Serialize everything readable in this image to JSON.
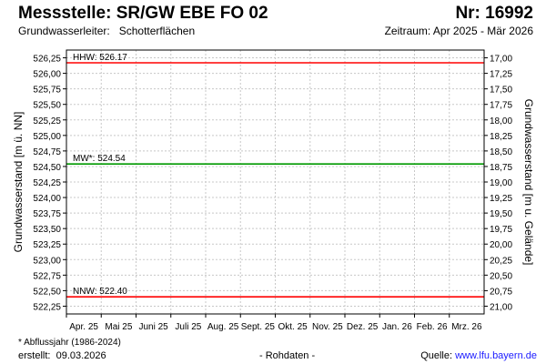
{
  "header": {
    "title": "Messstelle: SR/GW EBE FO 02",
    "number": "Nr: 16992",
    "aquifer_label": "Grundwasserleiter:",
    "aquifer_value": "Schotterflächen",
    "period": "Zeitraum: Apr 2025 - Mär 2026"
  },
  "footer": {
    "footnote": "* Abflussjahr (1986-2024)",
    "created_label": "erstellt:",
    "created_date": "09.03.2026",
    "raw_data_note": "- Rohdaten -",
    "source_label": "Quelle:",
    "source_url": "www.lfu.bayern.de"
  },
  "chart_data": {
    "type": "line",
    "ylabel": "Grundwasserstand [m ü. NN]",
    "ylabel_right": "Grundwasserstand [m u. Gelände]",
    "ylim": [
      522.125,
      526.375
    ],
    "yticks": [
      "522,25",
      "522,50",
      "522,75",
      "523,00",
      "523,25",
      "523,50",
      "523,75",
      "524,00",
      "524,25",
      "524,50",
      "524,75",
      "525,00",
      "525,25",
      "525,50",
      "525,75",
      "526,00",
      "526,25"
    ],
    "yticks_right": [
      "17,00",
      "17,25",
      "17,50",
      "17,75",
      "18,00",
      "18,25",
      "18,50",
      "18,75",
      "19,00",
      "19,25",
      "19,50",
      "19,75",
      "20,00",
      "20,25",
      "20,50",
      "20,75",
      "21,00"
    ],
    "categories": [
      "Apr. 25",
      "Mai 25",
      "Juni 25",
      "Juli 25",
      "Aug. 25",
      "Sept. 25",
      "Okt. 25",
      "Nov. 25",
      "Dez. 25",
      "Jan. 26",
      "Feb. 26",
      "Mrz. 26"
    ],
    "grid": true,
    "reference_lines": [
      {
        "label": "HHW: 526.17",
        "value": 526.17,
        "color": "#ff0000"
      },
      {
        "label": "MW*: 524.54",
        "value": 524.54,
        "color": "#009900"
      },
      {
        "label": "NNW: 522.40",
        "value": 522.4,
        "color": "#ff0000"
      }
    ]
  }
}
